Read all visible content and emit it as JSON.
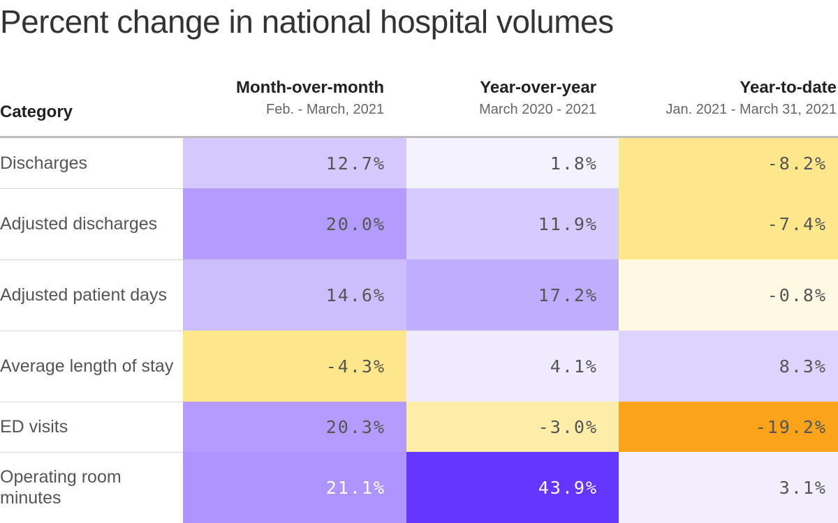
{
  "chart_data": {
    "type": "table",
    "title": "Percent change in national hospital volumes",
    "category_header": "Category",
    "columns": [
      {
        "name": "Month-over-month",
        "subtitle": "Feb. - March, 2021"
      },
      {
        "name": "Year-over-year",
        "subtitle": "March 2020 - 2021"
      },
      {
        "name": "Year-to-date",
        "subtitle": "Jan. 2021 - March 31, 2021"
      }
    ],
    "rows": [
      {
        "category": "Discharges",
        "values": [
          "12.7%",
          "1.8%",
          "-8.2%"
        ],
        "numbers": [
          12.7,
          1.8,
          -8.2
        ],
        "colors": [
          "#d4c8fe",
          "#f5f2ff",
          "#fee78b"
        ],
        "text_colors": [
          "#555555",
          "#555555",
          "#555555"
        ]
      },
      {
        "category": "Adjusted discharges",
        "values": [
          "20.0%",
          "11.9%",
          "-7.4%"
        ],
        "numbers": [
          20.0,
          11.9,
          -7.4
        ],
        "colors": [
          "#b49cfe",
          "#d6cafe",
          "#fee78b"
        ],
        "text_colors": [
          "#555555",
          "#555555",
          "#555555"
        ]
      },
      {
        "category": "Adjusted patient days",
        "values": [
          "14.6%",
          "17.2%",
          "-0.8%"
        ],
        "numbers": [
          14.6,
          17.2,
          -0.8
        ],
        "colors": [
          "#ccbefe",
          "#c0adfe",
          "#fff8e3"
        ],
        "text_colors": [
          "#555555",
          "#555555",
          "#555555"
        ]
      },
      {
        "category": "Average length of stay",
        "values": [
          "-4.3%",
          "4.1%",
          "8.3%"
        ],
        "numbers": [
          -4.3,
          4.1,
          8.3
        ],
        "colors": [
          "#fee78b",
          "#efeafe",
          "#ddd3fe"
        ],
        "text_colors": [
          "#555555",
          "#555555",
          "#555555"
        ]
      },
      {
        "category": "ED visits",
        "values": [
          "20.3%",
          "-3.0%",
          "-19.2%"
        ],
        "numbers": [
          20.3,
          -3.0,
          -19.2
        ],
        "colors": [
          "#b49cfe",
          "#fdeda8",
          "#fba31b"
        ],
        "text_colors": [
          "#555555",
          "#555555",
          "#555555"
        ]
      },
      {
        "category": "Operating room minutes",
        "values": [
          "21.1%",
          "43.9%",
          "3.1%"
        ],
        "numbers": [
          21.1,
          43.9,
          3.1
        ],
        "colors": [
          "#ae94fe",
          "#6536ff",
          "#f2eefe"
        ],
        "text_colors": [
          "#ffffff",
          "#ffffff",
          "#555555"
        ]
      }
    ]
  }
}
